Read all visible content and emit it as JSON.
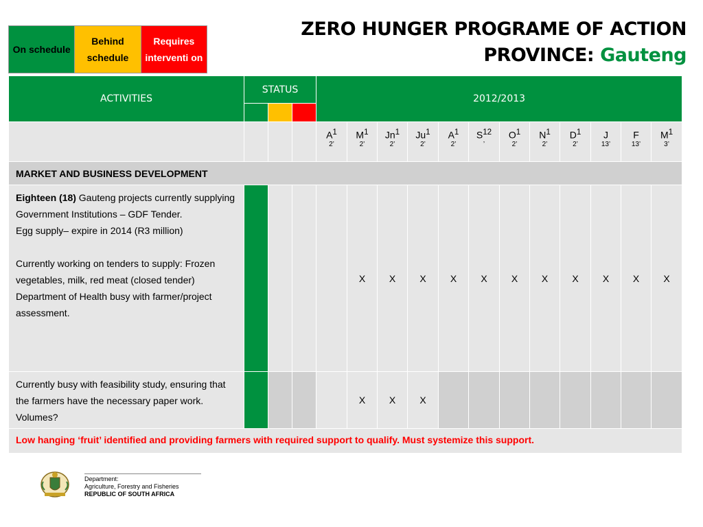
{
  "legend": {
    "on_schedule": "On schedule",
    "behind_schedule": "Behind schedule",
    "requires_intervention": "Requires interventi on"
  },
  "title": {
    "line1": "ZERO HUNGER PROGRAME OF ACTION",
    "province_label": "PROVINCE: ",
    "province_value": "Gauteng"
  },
  "table": {
    "activities_header": "ACTIVITIES",
    "status_header": "STATUS",
    "year_header": "2012/2013",
    "months": [
      {
        "label": "A",
        "sup": "1",
        "sub": "2’"
      },
      {
        "label": "M",
        "sup": "1",
        "sub": "2’"
      },
      {
        "label": "Jn",
        "sup": "1",
        "sub": "2’"
      },
      {
        "label": "Ju",
        "sup": "1",
        "sub": "2’"
      },
      {
        "label": "A",
        "sup": "1",
        "sub": "2’"
      },
      {
        "label": "S",
        "sup": "12",
        "sub": "’"
      },
      {
        "label": "O",
        "sup": "1",
        "sub": "2’"
      },
      {
        "label": "N",
        "sup": "1",
        "sub": "2’"
      },
      {
        "label": "D",
        "sup": "1",
        "sub": "2’"
      },
      {
        "label": "J",
        "sup": "",
        "sub": "13’"
      },
      {
        "label": "F",
        "sup": "",
        "sub": "13’"
      },
      {
        "label": "M",
        "sup": "1",
        "sub": "3’"
      }
    ],
    "section_title": "MARKET AND BUSINESS DEVELOPMENT",
    "row1": {
      "bold_lead": "Eighteen (18)",
      "text1": " Gauteng projects currently supplying Government Institutions – GDF Tender.",
      "text2": "Egg supply– expire in 2014 (R3 million)",
      "text3": "Currently working on tenders to supply: Frozen vegetables, milk, red meat (closed tender) Department of Health busy with farmer/project assessment.",
      "marks": [
        "",
        "X",
        "X",
        "X",
        "X",
        "X",
        "X",
        "X",
        "X",
        "X",
        "X",
        "X"
      ]
    },
    "row2": {
      "text": "Currently busy with feasibility study, ensuring that the farmers have the necessary paper work.  Volumes?",
      "marks": [
        "",
        "X",
        "X",
        "X",
        "",
        "",
        "",
        "",
        "",
        "",
        "",
        ""
      ]
    },
    "note": "Low hanging ‘fruit’ identified and providing farmers with required support to qualify. Must systemize this support."
  },
  "footer": {
    "dept_line1": "Department:",
    "dept_line2": "Agriculture, Forestry and Fisheries",
    "dept_line3": "REPUBLIC OF SOUTH AFRICA"
  },
  "colors": {
    "green": "#00913f",
    "yellow": "#ffc000",
    "red": "#ff0000"
  }
}
